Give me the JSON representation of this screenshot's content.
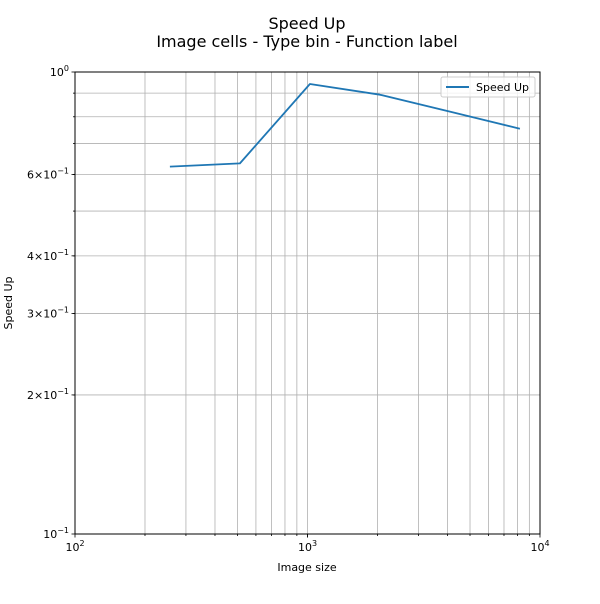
{
  "chart_data": {
    "type": "line",
    "title": "Speed Up",
    "subtitle": "Image cells - Type bin - Function label",
    "xlabel": "Image size",
    "ylabel": "Speed Up",
    "xscale": "log",
    "yscale": "log",
    "xlim": [
      100,
      10000
    ],
    "ylim": [
      0.1,
      1.0
    ],
    "grid": true,
    "legend_placement": "top-right",
    "x_ticks": [
      {
        "value": 100,
        "base": "10",
        "exp": "2"
      },
      {
        "value": 1000,
        "base": "10",
        "exp": "3"
      },
      {
        "value": 10000,
        "base": "10",
        "exp": "4"
      }
    ],
    "y_ticks": [
      {
        "value": 1.0,
        "mant": "",
        "base": "10",
        "exp": "0"
      },
      {
        "value": 0.6,
        "mant": "6×",
        "base": "10",
        "exp": "−1"
      },
      {
        "value": 0.4,
        "mant": "4×",
        "base": "10",
        "exp": "−1"
      },
      {
        "value": 0.3,
        "mant": "3×",
        "base": "10",
        "exp": "−1"
      },
      {
        "value": 0.2,
        "mant": "2×",
        "base": "10",
        "exp": "−1"
      },
      {
        "value": 0.1,
        "mant": "",
        "base": "10",
        "exp": "−1"
      }
    ],
    "series": [
      {
        "name": "Speed Up",
        "color": "#1f77b4",
        "x": [
          256,
          512,
          1024,
          2048,
          4096,
          8192
        ],
        "y": [
          0.624,
          0.634,
          0.942,
          0.893,
          0.821,
          0.754
        ]
      }
    ]
  }
}
